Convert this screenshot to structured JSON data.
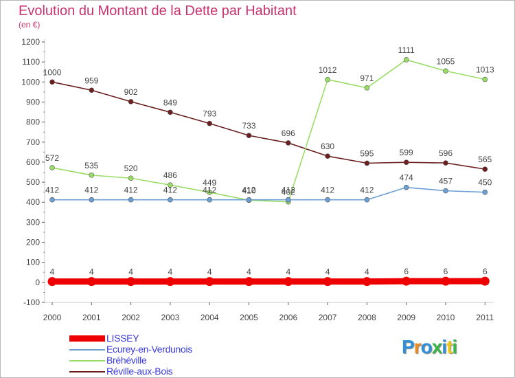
{
  "title": "Evolution du Montant de la Dette par Habitant",
  "unit_label": "(en €)",
  "chart_data": {
    "type": "line",
    "x": [
      "2000",
      "2001",
      "2002",
      "2003",
      "2004",
      "2005",
      "2006",
      "2007",
      "2008",
      "2009",
      "2010",
      "2011"
    ],
    "ylim": [
      -100,
      1200
    ],
    "yticks": [
      -100,
      0,
      100,
      200,
      300,
      400,
      500,
      600,
      700,
      800,
      900,
      1000,
      1100,
      1200
    ],
    "grid": false,
    "legend_position": "bottom-left",
    "series": [
      {
        "name": "LISSEY",
        "color": "#ee0000",
        "values": [
          4,
          4,
          4,
          4,
          4,
          4,
          4,
          4,
          4,
          6,
          6,
          6
        ],
        "labels": [
          "4",
          "4",
          "4",
          "4",
          "4",
          "4",
          "4",
          "4",
          "4",
          "6",
          "6",
          "6"
        ]
      },
      {
        "name": "Ecurey-en-Verdunois",
        "color": "#6b9fd4",
        "values": [
          412,
          412,
          412,
          412,
          412,
          412,
          412,
          412,
          412,
          474,
          457,
          450
        ],
        "labels": [
          "412",
          "412",
          "412",
          "412",
          "412",
          "412",
          "412",
          "412",
          "412",
          "474",
          "457",
          "450"
        ]
      },
      {
        "name": "Bréhéville",
        "color": "#99dd66",
        "values": [
          572,
          535,
          520,
          486,
          449,
          410,
          402,
          1012,
          971,
          1111,
          1055,
          1013
        ],
        "labels": [
          "572",
          "535",
          "520",
          "486",
          "449",
          "410",
          "402",
          "1012",
          "971",
          "1111",
          "1055",
          "1013"
        ]
      },
      {
        "name": "Réville-aux-Bois",
        "color": "#6b1f1f",
        "values": [
          1000,
          959,
          902,
          849,
          793,
          733,
          696,
          630,
          595,
          599,
          596,
          565
        ],
        "labels": [
          "1000",
          "959",
          "902",
          "849",
          "793",
          "733",
          "696",
          "630",
          "595",
          "599",
          "596",
          "565"
        ]
      }
    ]
  },
  "logo": {
    "text": "Proxiti",
    "colors": [
      "#2f8fd8",
      "#f08a1c",
      "#2f8fd8",
      "#3ab54a",
      "#2f8fd8",
      "#e8c81c",
      "#3ab54a"
    ]
  }
}
